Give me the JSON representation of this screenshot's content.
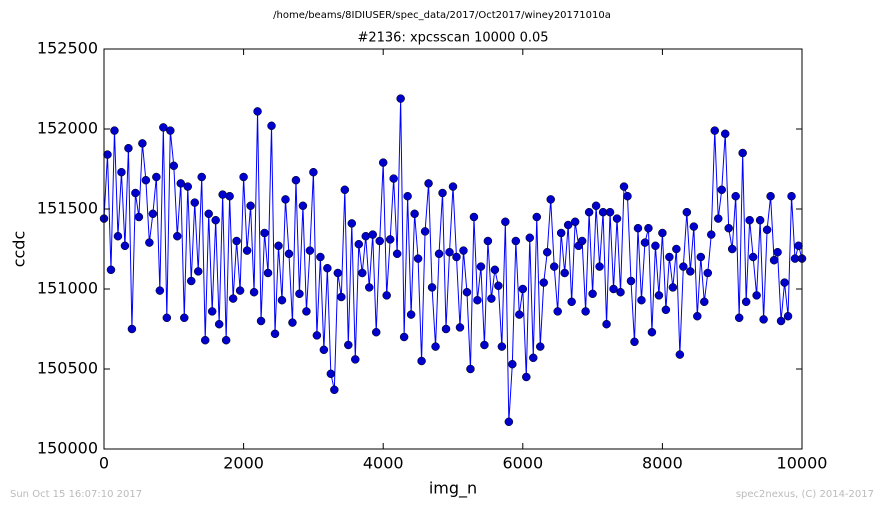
{
  "chart_data": {
    "type": "line",
    "suptitle": "/home/beams/8IDIUSER/spec_data/2017/Oct2017/winey20171010a",
    "title": "#2136: xpcsscan 10000 0.05",
    "xlabel": "img_n",
    "ylabel": "ccdc",
    "footer_left": "Sun Oct 15 16:07:10 2017",
    "footer_right": "spec2nexus, (C) 2014-2017",
    "color": "#0000ff",
    "marker_color": "#0000cc",
    "xlim": [
      0,
      10000
    ],
    "xticks": [
      0,
      2000,
      4000,
      6000,
      8000,
      10000
    ],
    "ylim": [
      150000,
      152500
    ],
    "yticks": [
      150000,
      150500,
      151000,
      151500,
      152000,
      152500
    ],
    "x": [
      0,
      50,
      100,
      150,
      200,
      250,
      300,
      350,
      400,
      450,
      500,
      550,
      600,
      650,
      700,
      750,
      800,
      850,
      900,
      950,
      1000,
      1050,
      1100,
      1150,
      1200,
      1250,
      1300,
      1350,
      1400,
      1450,
      1500,
      1550,
      1600,
      1650,
      1700,
      1750,
      1800,
      1850,
      1900,
      1950,
      2000,
      2050,
      2100,
      2150,
      2200,
      2250,
      2300,
      2350,
      2400,
      2450,
      2500,
      2550,
      2600,
      2650,
      2700,
      2750,
      2800,
      2850,
      2900,
      2950,
      3000,
      3050,
      3100,
      3150,
      3200,
      3250,
      3300,
      3350,
      3400,
      3450,
      3500,
      3550,
      3600,
      3650,
      3700,
      3750,
      3800,
      3850,
      3900,
      3950,
      4000,
      4050,
      4100,
      4150,
      4200,
      4250,
      4300,
      4350,
      4400,
      4450,
      4500,
      4550,
      4600,
      4650,
      4700,
      4750,
      4800,
      4850,
      4900,
      4950,
      5000,
      5050,
      5100,
      5150,
      5200,
      5250,
      5300,
      5350,
      5400,
      5450,
      5500,
      5550,
      5600,
      5650,
      5700,
      5750,
      5800,
      5850,
      5900,
      5950,
      6000,
      6050,
      6100,
      6150,
      6200,
      6250,
      6300,
      6350,
      6400,
      6450,
      6500,
      6550,
      6600,
      6650,
      6700,
      6750,
      6800,
      6850,
      6900,
      6950,
      7000,
      7050,
      7100,
      7150,
      7200,
      7250,
      7300,
      7350,
      7400,
      7450,
      7500,
      7550,
      7600,
      7650,
      7700,
      7750,
      7800,
      7850,
      7900,
      7950,
      8000,
      8050,
      8100,
      8150,
      8200,
      8250,
      8300,
      8350,
      8400,
      8450,
      8500,
      8550,
      8600,
      8650,
      8700,
      8750,
      8800,
      8850,
      8900,
      8950,
      9000,
      9050,
      9100,
      9150,
      9200,
      9250,
      9300,
      9350,
      9400,
      9450,
      9500,
      9550,
      9600,
      9650,
      9700,
      9750,
      9800,
      9850,
      9900,
      9950,
      10000
    ],
    "values": [
      151440,
      151840,
      151120,
      151990,
      151330,
      151730,
      151270,
      151880,
      150750,
      151600,
      151450,
      151910,
      151680,
      151290,
      151470,
      151700,
      150990,
      152010,
      150820,
      151990,
      151770,
      151330,
      151660,
      150820,
      151640,
      151050,
      151540,
      151110,
      151700,
      150680,
      151470,
      150860,
      151430,
      150780,
      151590,
      150680,
      151580,
      150940,
      151300,
      150990,
      151700,
      151240,
      151520,
      150980,
      152110,
      150800,
      151350,
      151100,
      152020,
      150720,
      151270,
      150930,
      151560,
      151220,
      150790,
      151680,
      150970,
      151520,
      150860,
      151240,
      151730,
      150710,
      151200,
      150620,
      151130,
      150470,
      150370,
      151100,
      150950,
      151620,
      150650,
      151410,
      150560,
      151280,
      151100,
      151330,
      151010,
      151340,
      150730,
      151300,
      151790,
      150960,
      151310,
      151690,
      151220,
      152190,
      150700,
      151580,
      150840,
      151470,
      151190,
      150550,
      151360,
      151660,
      151010,
      150640,
      151220,
      151600,
      150750,
      151230,
      151640,
      151200,
      150760,
      151240,
      150980,
      150500,
      151450,
      150930,
      151140,
      150650,
      151300,
      150940,
      151120,
      151020,
      150640,
      151420,
      150170,
      150530,
      151300,
      150840,
      151000,
      150450,
      151320,
      150570,
      151450,
      150640,
      151040,
      151230,
      151560,
      151140,
      150860,
      151350,
      151100,
      151400,
      150920,
      151420,
      151270,
      151300,
      150860,
      151480,
      150970,
      151520,
      151140,
      151480,
      150780,
      151480,
      151000,
      151440,
      150980,
      151640,
      151580,
      151050,
      150670,
      151380,
      150930,
      151290,
      151380,
      150730,
      151270,
      150960,
      151350,
      150870,
      151200,
      151010,
      151250,
      150590,
      151140,
      151480,
      151110,
      151390,
      150830,
      151200,
      150920,
      151100,
      151340,
      151990,
      151440,
      151620,
      151970,
      151380,
      151250,
      151580,
      150820,
      151850,
      150920,
      151430,
      151200,
      150960,
      151430,
      150810,
      151370,
      151580,
      151180,
      151230,
      150800,
      151040,
      150830,
      151580,
      151190,
      151270,
      151190
    ]
  }
}
